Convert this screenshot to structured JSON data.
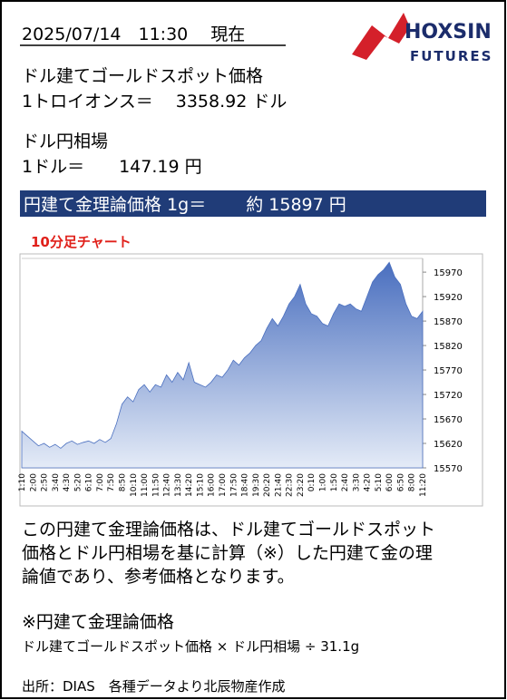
{
  "header": {
    "timestamp": "2025/07/14　11:30　 現在",
    "logo": {
      "name": "HOXSIN",
      "sub": "FUTURES"
    }
  },
  "gold": {
    "label": "ドル建てゴールドスポット価格",
    "price": "1トロイオンス＝　 3358.92 ドル"
  },
  "fx": {
    "label": "ドル円相場",
    "rate": "1ドル＝　　147.19 円"
  },
  "theory_price": "円建て金理論価格 1g＝　　 約 15897 円",
  "chart_data": {
    "type": "area",
    "title": "10分足チャート",
    "categories": [
      "1:10",
      null,
      "2:00",
      null,
      "2:50",
      null,
      "3:40",
      null,
      "4:30",
      null,
      "5:20",
      null,
      "6:10",
      null,
      "7:00",
      null,
      "7:50",
      null,
      "8:50",
      null,
      "10:10",
      null,
      "11:00",
      null,
      "11:50",
      null,
      "12:40",
      null,
      "13:30",
      null,
      "14:20",
      null,
      "15:10",
      null,
      "16:00",
      null,
      "17:00",
      null,
      "17:50",
      null,
      "18:40",
      null,
      "19:30",
      null,
      "20:20",
      null,
      "21:40",
      null,
      "22:30",
      null,
      "23:20",
      null,
      "0:10",
      null,
      "1:00",
      null,
      "1:50",
      null,
      "2:40",
      null,
      "3:30",
      null,
      "4:20",
      null,
      "5:10",
      null,
      "6:00",
      null,
      "6:50",
      null,
      "8:00",
      null,
      "11:20"
    ],
    "values": [
      15645,
      15635,
      15625,
      15615,
      15620,
      15612,
      15618,
      15610,
      15620,
      15625,
      15618,
      15622,
      15625,
      15620,
      15628,
      15622,
      15630,
      15660,
      15700,
      15715,
      15705,
      15730,
      15740,
      15725,
      15740,
      15735,
      15760,
      15745,
      15765,
      15750,
      15785,
      15745,
      15740,
      15735,
      15745,
      15760,
      15755,
      15770,
      15790,
      15780,
      15795,
      15805,
      15820,
      15830,
      15855,
      15875,
      15860,
      15880,
      15905,
      15920,
      15945,
      15905,
      15885,
      15880,
      15865,
      15860,
      15885,
      15905,
      15900,
      15905,
      15895,
      15890,
      15920,
      15950,
      15965,
      15975,
      15990,
      15960,
      15945,
      15905,
      15880,
      15875,
      15890
    ],
    "color": "#4a6fbf",
    "ylim": [
      15570,
      15998
    ],
    "yticks": [
      15570,
      15620,
      15670,
      15720,
      15770,
      15820,
      15870,
      15920,
      15970
    ]
  },
  "notes": {
    "lines": [
      "この円建て金理論価格は、ドル建てゴールドスポット",
      "価格とドル円相場を基に計算（※）した円建て金の理",
      "論値であり、参考価格となります。"
    ]
  },
  "formula": {
    "title": "※円建て金理論価格",
    "text": "ドル建てゴールドスポット価格 × ドル円相場 ÷ 31.1g"
  },
  "source": "出所：DIAS　各種データより北辰物産作成"
}
